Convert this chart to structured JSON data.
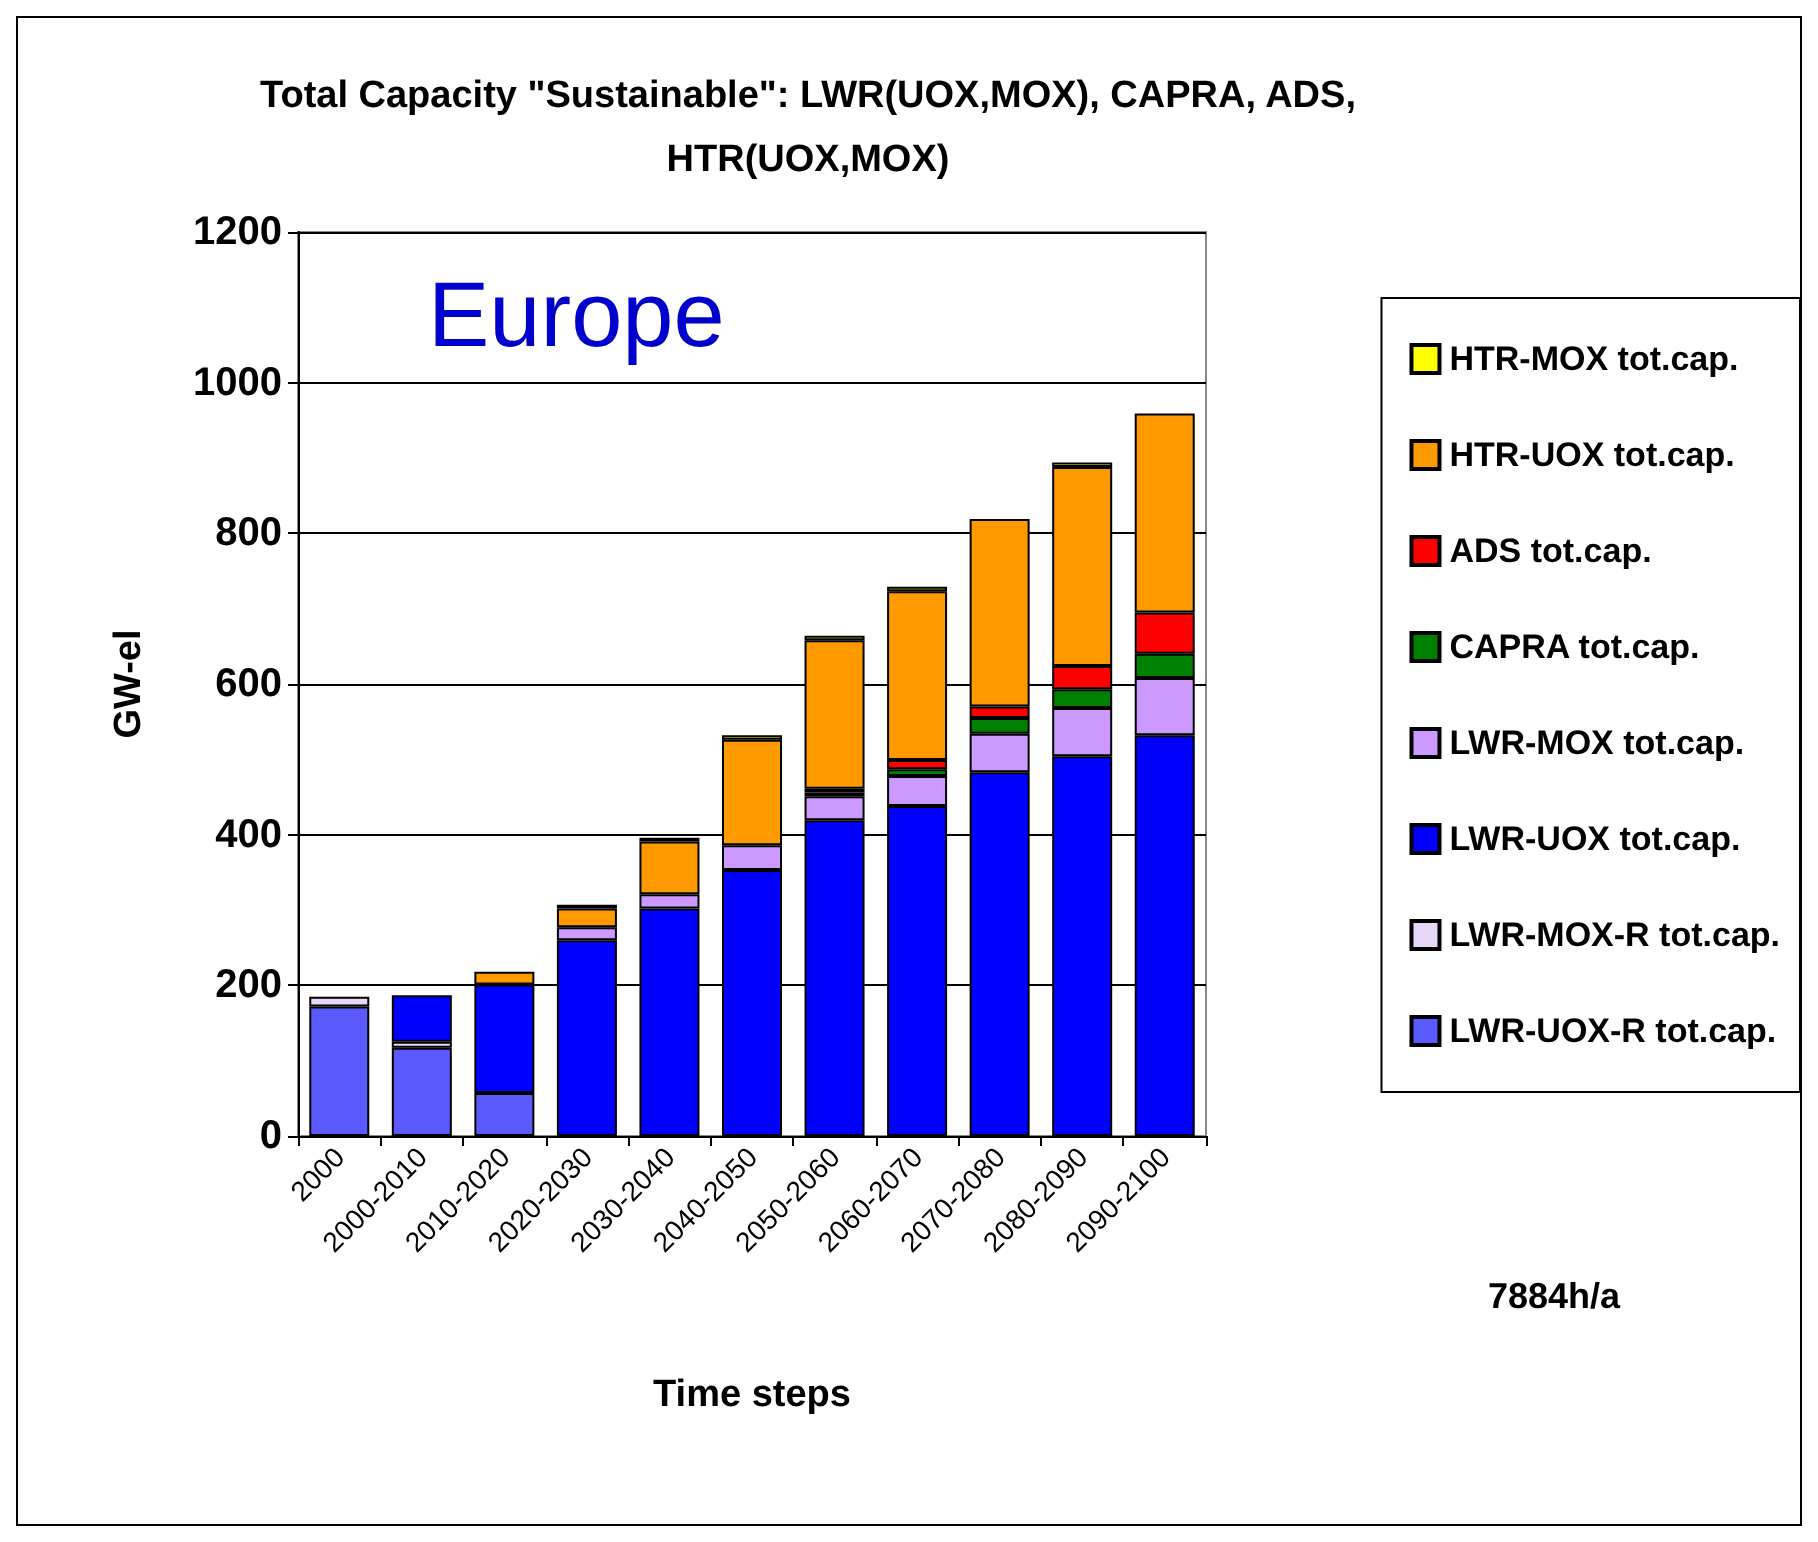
{
  "chart_data": {
    "type": "bar",
    "title": "Total Capacity \"Sustainable\": LWR(UOX,MOX), CAPRA, ADS,\nHTR(UOX,MOX)",
    "xlabel": "Time steps",
    "ylabel": "GW-el",
    "annotations": [
      "Europe",
      "7884h/a"
    ],
    "categories": [
      "2000",
      "2000-2010",
      "2010-2020",
      "2020-2030",
      "2030-2040",
      "2040-2050",
      "2050-2060",
      "2060-2070",
      "2070-2080",
      "2080-2090",
      "2090-2100"
    ],
    "stacked": true,
    "ylim": [
      0,
      1200
    ],
    "yticks": [
      0,
      200,
      400,
      600,
      800,
      1000,
      1200
    ],
    "grid": "y",
    "legend": "right",
    "series": [
      {
        "name": "LWR-UOX-R tot.cap.",
        "color": "#5a5aff",
        "values": [
          172,
          117,
          57,
          0,
          0,
          0,
          0,
          0,
          0,
          0,
          0
        ]
      },
      {
        "name": "LWR-MOX-R tot.cap.",
        "color": "#e8d8f8",
        "values": [
          13,
          8,
          null,
          0,
          0,
          0,
          0,
          0,
          0,
          0,
          0
        ]
      },
      {
        "name": "LWR-UOX tot.cap.",
        "color": "#0000ff",
        "values": [
          0,
          62,
          144,
          260,
          302,
          353,
          419,
          438,
          483,
          504,
          532
        ]
      },
      {
        "name": "LWR-MOX tot.cap.",
        "color": "#cc99ff",
        "values": [
          0,
          0,
          0,
          17,
          19,
          33,
          32,
          40,
          51,
          64,
          76
        ]
      },
      {
        "name": "CAPRA tot.cap.",
        "color": "#008000",
        "values": [
          0,
          0,
          0,
          0,
          0,
          0,
          5,
          9,
          21,
          25,
          32
        ]
      },
      {
        "name": "ADS tot.cap.",
        "color": "#ff0000",
        "values": [
          0,
          0,
          0,
          0,
          0,
          0,
          5,
          12,
          15,
          31,
          55
        ]
      },
      {
        "name": "HTR-UOX tot.cap.",
        "color": "#ff9900",
        "values": [
          0,
          0,
          17,
          25,
          70,
          140,
          197,
          224,
          249,
          264,
          264
        ]
      },
      {
        "name": "HTR-MOX tot.cap.",
        "color": "#ffff00",
        "values": [
          0,
          0,
          null,
          5,
          5,
          6,
          6,
          6,
          null,
          6,
          0
        ]
      }
    ]
  }
}
